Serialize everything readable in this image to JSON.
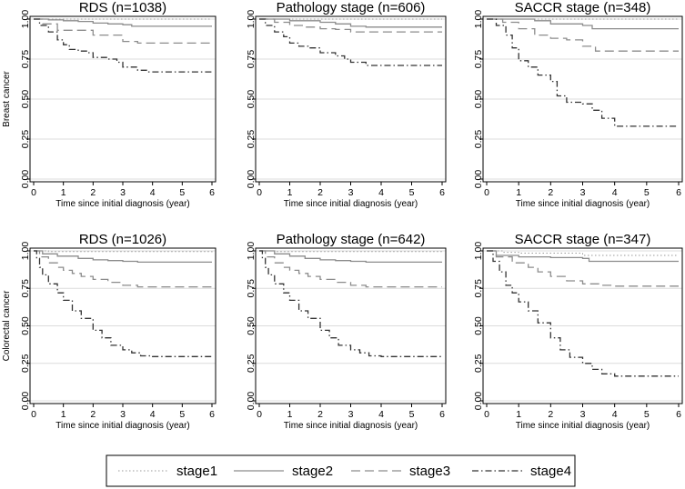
{
  "chart_data": {
    "type": "line",
    "figure": "Kaplan-Meier survival curves by staging method",
    "legend": {
      "entries": [
        {
          "name": "stage1",
          "dash": "dotted",
          "color": "#9a9a9a"
        },
        {
          "name": "stage2",
          "dash": "solid",
          "color": "#8c8c8c"
        },
        {
          "name": "stage3",
          "dash": "longdash",
          "color": "#8c8c8c"
        },
        {
          "name": "stage4",
          "dash": "dashdot",
          "color": "#333333"
        }
      ],
      "placement": "bottom"
    },
    "row_labels": [
      "Breast cancer",
      "Colorectal cancer"
    ],
    "xlabel": "Time since initial diagnosis (year)",
    "x_ticks": [
      0,
      1,
      2,
      3,
      4,
      5,
      6
    ],
    "y_ticks": [
      "0.00",
      "0.25",
      "0.50",
      "0.75",
      "1.00"
    ],
    "xlim": [
      0,
      6
    ],
    "ylim": [
      0,
      1
    ],
    "grid": "horizontal",
    "panels": [
      {
        "title": "RDS (n=1038)",
        "series": [
          {
            "name": "stage1",
            "points": [
              [
                0,
                1
              ],
              [
                6,
                1
              ]
            ]
          },
          {
            "name": "stage2",
            "points": [
              [
                0,
                1
              ],
              [
                0.5,
                0.995
              ],
              [
                1,
                0.99
              ],
              [
                1.5,
                0.985
              ],
              [
                2,
                0.975
              ],
              [
                2.5,
                0.97
              ],
              [
                3,
                0.965
              ],
              [
                3.3,
                0.955
              ],
              [
                6,
                0.955
              ]
            ]
          },
          {
            "name": "stage3",
            "points": [
              [
                0,
                1
              ],
              [
                0.3,
                0.97
              ],
              [
                0.8,
                0.93
              ],
              [
                1.5,
                0.93
              ],
              [
                2,
                0.9
              ],
              [
                2.6,
                0.9
              ],
              [
                3,
                0.86
              ],
              [
                3.5,
                0.85
              ],
              [
                6,
                0.85
              ]
            ]
          },
          {
            "name": "stage4",
            "points": [
              [
                0,
                1
              ],
              [
                0.2,
                0.96
              ],
              [
                0.5,
                0.92
              ],
              [
                0.8,
                0.87
              ],
              [
                1,
                0.84
              ],
              [
                1.2,
                0.81
              ],
              [
                1.5,
                0.8
              ],
              [
                1.8,
                0.79
              ],
              [
                2,
                0.76
              ],
              [
                2.5,
                0.75
              ],
              [
                2.8,
                0.73
              ],
              [
                3,
                0.7
              ],
              [
                3.5,
                0.68
              ],
              [
                3.8,
                0.67
              ],
              [
                6,
                0.67
              ]
            ]
          }
        ]
      },
      {
        "title": "Pathology stage (n=606)",
        "series": [
          {
            "name": "stage1",
            "points": [
              [
                0,
                1
              ],
              [
                6,
                1
              ]
            ]
          },
          {
            "name": "stage2",
            "points": [
              [
                0,
                1
              ],
              [
                1,
                0.99
              ],
              [
                2,
                0.98
              ],
              [
                2.5,
                0.97
              ],
              [
                3,
                0.955
              ],
              [
                3.5,
                0.95
              ],
              [
                6,
                0.95
              ]
            ]
          },
          {
            "name": "stage3",
            "points": [
              [
                0,
                1
              ],
              [
                0.5,
                0.98
              ],
              [
                1,
                0.96
              ],
              [
                1.5,
                0.95
              ],
              [
                2,
                0.94
              ],
              [
                2.5,
                0.935
              ],
              [
                3,
                0.92
              ],
              [
                6,
                0.92
              ]
            ]
          },
          {
            "name": "stage4",
            "points": [
              [
                0,
                1
              ],
              [
                0.2,
                0.96
              ],
              [
                0.5,
                0.92
              ],
              [
                0.8,
                0.89
              ],
              [
                1,
                0.85
              ],
              [
                1.3,
                0.83
              ],
              [
                1.6,
                0.82
              ],
              [
                2,
                0.79
              ],
              [
                2.5,
                0.77
              ],
              [
                2.8,
                0.75
              ],
              [
                3,
                0.73
              ],
              [
                3.5,
                0.71
              ],
              [
                6,
                0.71
              ]
            ]
          }
        ]
      },
      {
        "title": "SACCR stage (n=348)",
        "series": [
          {
            "name": "stage1",
            "points": [
              [
                0,
                1
              ],
              [
                6,
                1
              ]
            ]
          },
          {
            "name": "stage2",
            "points": [
              [
                0,
                1
              ],
              [
                1.5,
                0.99
              ],
              [
                2,
                0.97
              ],
              [
                3,
                0.96
              ],
              [
                3.3,
                0.94
              ],
              [
                6,
                0.94
              ]
            ]
          },
          {
            "name": "stage3",
            "points": [
              [
                0,
                1
              ],
              [
                0.5,
                0.98
              ],
              [
                1,
                0.94
              ],
              [
                1.5,
                0.9
              ],
              [
                2,
                0.88
              ],
              [
                2.5,
                0.87
              ],
              [
                3,
                0.83
              ],
              [
                3.4,
                0.8
              ],
              [
                6,
                0.8
              ]
            ]
          },
          {
            "name": "stage4",
            "points": [
              [
                0,
                1
              ],
              [
                0.3,
                0.96
              ],
              [
                0.6,
                0.9
              ],
              [
                0.8,
                0.82
              ],
              [
                1,
                0.74
              ],
              [
                1.3,
                0.7
              ],
              [
                1.6,
                0.65
              ],
              [
                2,
                0.61
              ],
              [
                2.2,
                0.52
              ],
              [
                2.5,
                0.48
              ],
              [
                3,
                0.47
              ],
              [
                3.3,
                0.43
              ],
              [
                3.6,
                0.38
              ],
              [
                4,
                0.33
              ],
              [
                6,
                0.33
              ]
            ]
          }
        ]
      },
      {
        "title": "RDS (n=1026)",
        "series": [
          {
            "name": "stage1",
            "points": [
              [
                0,
                1
              ],
              [
                0.5,
                0.995
              ],
              [
                6,
                0.99
              ]
            ]
          },
          {
            "name": "stage2",
            "points": [
              [
                0,
                1
              ],
              [
                0.3,
                0.98
              ],
              [
                0.8,
                0.965
              ],
              [
                1.5,
                0.95
              ],
              [
                2,
                0.94
              ],
              [
                2.5,
                0.935
              ],
              [
                3,
                0.93
              ],
              [
                3.5,
                0.925
              ],
              [
                6,
                0.925
              ]
            ]
          },
          {
            "name": "stage3",
            "points": [
              [
                0,
                1
              ],
              [
                0.2,
                0.96
              ],
              [
                0.5,
                0.92
              ],
              [
                0.8,
                0.89
              ],
              [
                1,
                0.87
              ],
              [
                1.3,
                0.85
              ],
              [
                1.6,
                0.83
              ],
              [
                2,
                0.81
              ],
              [
                2.5,
                0.79
              ],
              [
                3,
                0.77
              ],
              [
                3.5,
                0.76
              ],
              [
                6,
                0.76
              ]
            ]
          },
          {
            "name": "stage4",
            "points": [
              [
                0,
                1
              ],
              [
                0.1,
                0.95
              ],
              [
                0.2,
                0.89
              ],
              [
                0.3,
                0.84
              ],
              [
                0.5,
                0.78
              ],
              [
                0.8,
                0.72
              ],
              [
                1,
                0.67
              ],
              [
                1.3,
                0.6
              ],
              [
                1.6,
                0.55
              ],
              [
                2,
                0.47
              ],
              [
                2.3,
                0.42
              ],
              [
                2.6,
                0.37
              ],
              [
                3,
                0.34
              ],
              [
                3.3,
                0.32
              ],
              [
                3.6,
                0.3
              ],
              [
                4,
                0.295
              ],
              [
                6,
                0.295
              ]
            ]
          }
        ]
      },
      {
        "title": "Pathology stage (n=642)",
        "series": [
          {
            "name": "stage1",
            "points": [
              [
                0,
                1
              ],
              [
                0.5,
                0.995
              ],
              [
                6,
                0.99
              ]
            ]
          },
          {
            "name": "stage2",
            "points": [
              [
                0,
                1
              ],
              [
                0.5,
                0.98
              ],
              [
                1,
                0.965
              ],
              [
                1.5,
                0.95
              ],
              [
                2,
                0.94
              ],
              [
                2.5,
                0.935
              ],
              [
                3,
                0.93
              ],
              [
                3.5,
                0.925
              ],
              [
                6,
                0.925
              ]
            ]
          },
          {
            "name": "stage3",
            "points": [
              [
                0,
                1
              ],
              [
                0.2,
                0.96
              ],
              [
                0.5,
                0.92
              ],
              [
                0.8,
                0.89
              ],
              [
                1,
                0.87
              ],
              [
                1.3,
                0.85
              ],
              [
                1.6,
                0.83
              ],
              [
                2,
                0.81
              ],
              [
                2.5,
                0.79
              ],
              [
                3,
                0.77
              ],
              [
                3.5,
                0.76
              ],
              [
                6,
                0.76
              ]
            ]
          },
          {
            "name": "stage4",
            "points": [
              [
                0,
                1
              ],
              [
                0.1,
                0.95
              ],
              [
                0.2,
                0.89
              ],
              [
                0.3,
                0.84
              ],
              [
                0.5,
                0.78
              ],
              [
                0.8,
                0.72
              ],
              [
                1,
                0.67
              ],
              [
                1.3,
                0.6
              ],
              [
                1.6,
                0.55
              ],
              [
                2,
                0.47
              ],
              [
                2.3,
                0.42
              ],
              [
                2.6,
                0.37
              ],
              [
                3,
                0.34
              ],
              [
                3.3,
                0.32
              ],
              [
                3.6,
                0.3
              ],
              [
                4,
                0.295
              ],
              [
                6,
                0.295
              ]
            ]
          }
        ]
      },
      {
        "title": "SACCR stage (n=347)",
        "series": [
          {
            "name": "stage1",
            "points": [
              [
                0,
                1
              ],
              [
                0.5,
                0.99
              ],
              [
                1,
                0.985
              ],
              [
                3,
                0.97
              ],
              [
                6,
                0.97
              ]
            ]
          },
          {
            "name": "stage2",
            "points": [
              [
                0,
                1
              ],
              [
                0.3,
                0.97
              ],
              [
                1,
                0.96
              ],
              [
                2,
                0.955
              ],
              [
                3,
                0.95
              ],
              [
                3.2,
                0.93
              ],
              [
                6,
                0.93
              ]
            ]
          },
          {
            "name": "stage3",
            "points": [
              [
                0,
                1
              ],
              [
                0.3,
                0.96
              ],
              [
                0.8,
                0.92
              ],
              [
                1.3,
                0.89
              ],
              [
                1.6,
                0.86
              ],
              [
                2,
                0.83
              ],
              [
                2.5,
                0.8
              ],
              [
                3,
                0.78
              ],
              [
                3.5,
                0.77
              ],
              [
                4,
                0.765
              ],
              [
                6,
                0.765
              ]
            ]
          },
          {
            "name": "stage4",
            "points": [
              [
                0,
                1
              ],
              [
                0.2,
                0.93
              ],
              [
                0.4,
                0.86
              ],
              [
                0.6,
                0.77
              ],
              [
                0.8,
                0.72
              ],
              [
                1,
                0.66
              ],
              [
                1.3,
                0.6
              ],
              [
                1.6,
                0.52
              ],
              [
                2,
                0.42
              ],
              [
                2.3,
                0.34
              ],
              [
                2.6,
                0.29
              ],
              [
                3,
                0.25
              ],
              [
                3.3,
                0.21
              ],
              [
                3.6,
                0.18
              ],
              [
                4,
                0.165
              ],
              [
                6,
                0.165
              ]
            ]
          }
        ]
      }
    ]
  }
}
